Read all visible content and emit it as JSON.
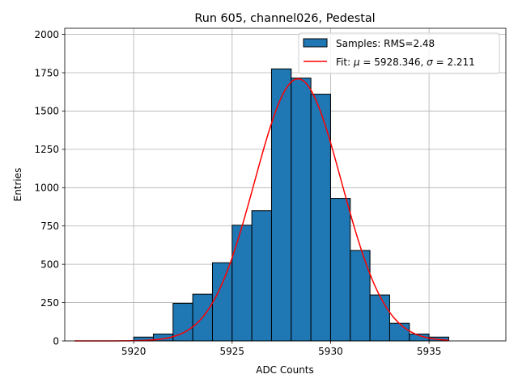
{
  "chart_data": {
    "type": "bar",
    "title": "Run 605, channel026, Pedestal",
    "xlabel": "ADC Counts",
    "ylabel": "Entries",
    "xlim": [
      5916.5,
      5938.9
    ],
    "ylim": [
      0,
      2040
    ],
    "xticks": [
      5920,
      5925,
      5930,
      5935
    ],
    "yticks": [
      0,
      250,
      500,
      750,
      1000,
      1250,
      1500,
      1750,
      2000
    ],
    "grid": true,
    "legend_position": "top-right",
    "histogram": {
      "label": "Samples: RMS=2.48",
      "color": "#1f77b4",
      "edge_color": "#000000",
      "bin_edges": [
        5920,
        5921,
        5922,
        5923,
        5924,
        5925,
        5926,
        5927,
        5928,
        5929,
        5930,
        5931,
        5932,
        5933,
        5934,
        5935,
        5936
      ],
      "counts": [
        25,
        45,
        245,
        305,
        510,
        755,
        850,
        1775,
        1715,
        1610,
        930,
        590,
        300,
        115,
        45,
        25
      ]
    },
    "fit": {
      "label": "Fit: μ = 5928.346, σ = 2.211",
      "label_parts": {
        "prefix": "Fit: ",
        "mu_symbol": "μ",
        "mu_text": " = 5928.346, ",
        "sigma_symbol": "σ",
        "sigma_text": " = 2.211"
      },
      "color": "#ff0000",
      "mu": 5928.346,
      "sigma": 2.211,
      "amplitude": 1710,
      "x_range": [
        5917,
        5936
      ]
    }
  }
}
